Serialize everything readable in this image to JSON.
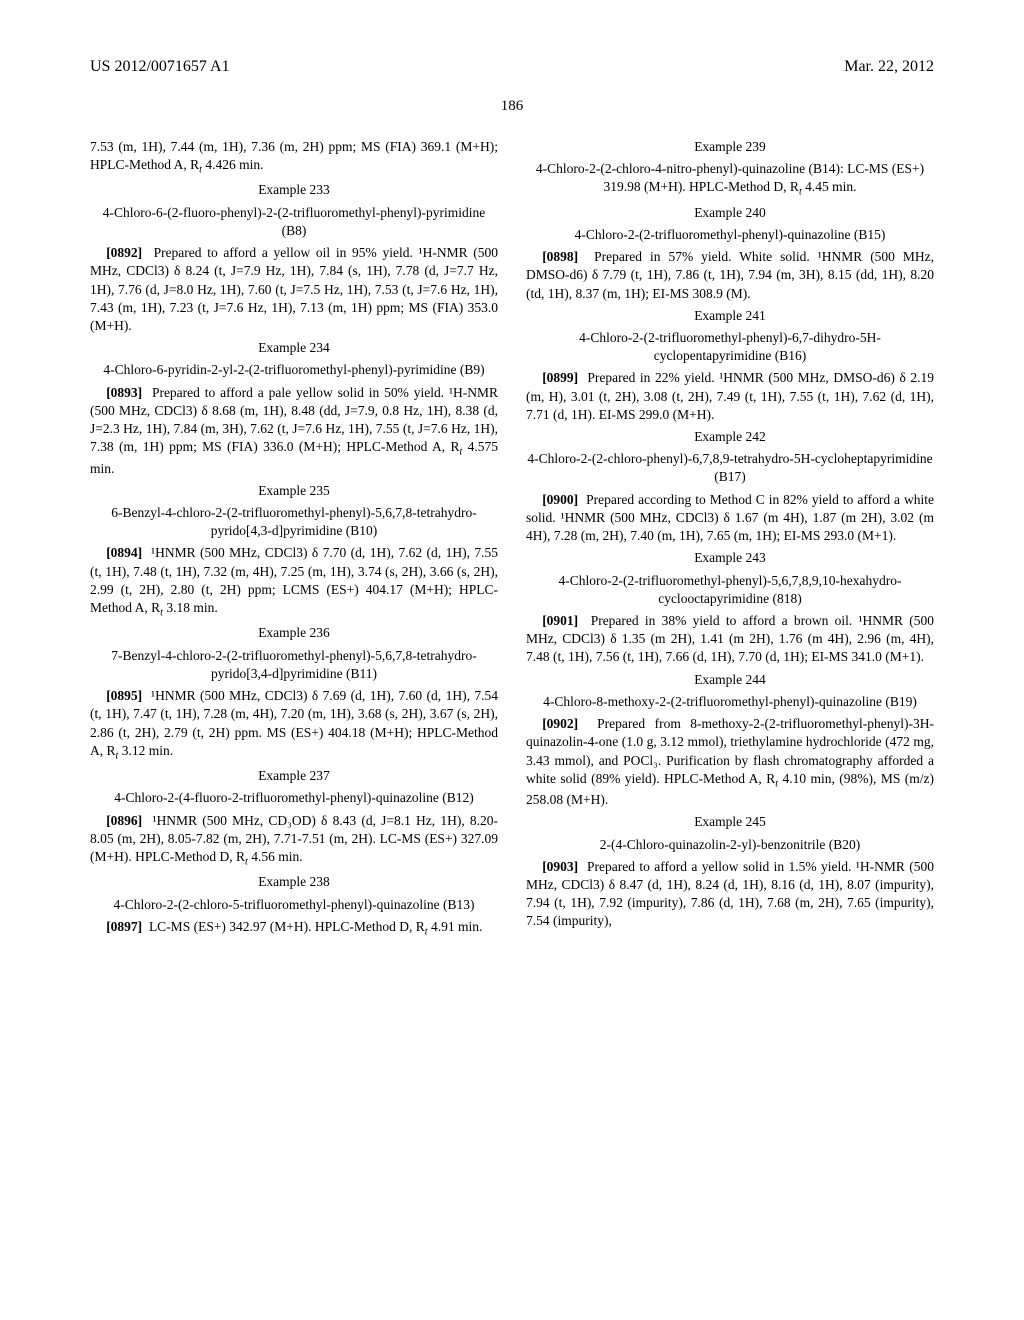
{
  "header": {
    "left": "US 2012/0071657 A1",
    "right": "Mar. 22, 2012"
  },
  "page_number": "186",
  "left_column": {
    "lead_text": "7.53 (m, 1H), 7.44 (m, 1H), 7.36 (m, 2H) ppm; MS (FIA) 369.1 (M+H); HPLC-Method A, R",
    "lead_tail": " 4.426 min.",
    "ex233": {
      "label": "Example 233",
      "title": "4-Chloro-6-(2-fluoro-phenyl)-2-(2-trifluoromethyl-phenyl)-pyrimidine (B8)",
      "para_ref": "[0892]",
      "body": "Prepared to afford a yellow oil in 95% yield. ¹H-NMR (500 MHz, CDCl3) δ 8.24 (t, J=7.9 Hz, 1H), 7.84 (s, 1H), 7.78 (d, J=7.7 Hz, 1H), 7.76 (d, J=8.0 Hz, 1H), 7.60 (t, J=7.5 Hz, 1H), 7.53 (t, J=7.6 Hz, 1H), 7.43 (m, 1H), 7.23 (t, J=7.6 Hz, 1H), 7.13 (m, 1H) ppm; MS (FIA) 353.0 (M+H)."
    },
    "ex234": {
      "label": "Example 234",
      "title": "4-Chloro-6-pyridin-2-yl-2-(2-trifluoromethyl-phenyl)-pyrimidine (B9)",
      "para_ref": "[0893]",
      "body_a": "Prepared to afford a pale yellow solid in 50% yield. ¹H-NMR (500 MHz, CDCl3) δ 8.68 (m, 1H), 8.48 (dd, J=7.9, 0.8 Hz, 1H), 8.38 (d, J=2.3 Hz, 1H), 7.84 (m, 3H), 7.62 (t, J=7.6 Hz, 1H), 7.55 (t, J=7.6 Hz, 1H), 7.38 (m, 1H) ppm; MS (FIA) 336.0 (M+H); HPLC-Method A, R",
      "body_b": " 4.575 min."
    },
    "ex235": {
      "label": "Example 235",
      "title": "6-Benzyl-4-chloro-2-(2-trifluoromethyl-phenyl)-5,6,7,8-tetrahydro-pyrido[4,3-d]pyrimidine (B10)",
      "para_ref": "[0894]",
      "body_a": "¹HNMR (500 MHz, CDCl3) δ 7.70 (d, 1H), 7.62 (d, 1H), 7.55 (t, 1H), 7.48 (t, 1H), 7.32 (m, 4H), 7.25 (m, 1H), 3.74 (s, 2H), 3.66 (s, 2H), 2.99 (t, 2H), 2.80 (t, 2H) ppm; LCMS (ES+) 404.17 (M+H); HPLC-Method A, R",
      "body_b": " 3.18 min."
    },
    "ex236": {
      "label": "Example 236",
      "title": "7-Benzyl-4-chloro-2-(2-trifluoromethyl-phenyl)-5,6,7,8-tetrahydro-pyrido[3,4-d]pyrimidine (B11)",
      "para_ref": "[0895]",
      "body_a": "¹HNMR (500 MHz, CDCl3) δ 7.69 (d, 1H), 7.60 (d, 1H), 7.54 (t, 1H), 7.47 (t, 1H), 7.28 (m, 4H), 7.20 (m, 1H), 3.68 (s, 2H), 3.67 (s, 2H), 2.86 (t, 2H), 2.79 (t, 2H) ppm. MS (ES+) 404.18 (M+H); HPLC-Method A, R",
      "body_b": " 3.12 min."
    },
    "ex237": {
      "label": "Example 237",
      "title": "4-Chloro-2-(4-fluoro-2-trifluoromethyl-phenyl)-quinazoline (B12)",
      "para_ref": "[0896]",
      "body_a": "¹HNMR (500 MHz, CD₃OD) δ 8.43 (d, J=8.1 Hz, 1H), 8.20-8.05 (m, 2H), 8.05-7.82 (m, 2H), 7.71-7.51 (m, 2H). LC-MS (ES+) 327.09 (M+H). HPLC-Method D, R",
      "body_b": " 4.56 min."
    },
    "ex238": {
      "label": "Example 238",
      "title": "4-Chloro-2-(2-chloro-5-trifluoromethyl-phenyl)-quinazoline (B13)",
      "para_ref": "[0897]",
      "body_a": "LC-MS (ES+) 342.97 (M+H). HPLC-Method D, R",
      "body_b": " 4.91 min."
    }
  },
  "right_column": {
    "ex239": {
      "label": "Example 239",
      "title_a": "4-Chloro-2-(2-chloro-4-nitro-phenyl)-quinazoline (B14): LC-MS (ES+) 319.98 (M+H). HPLC-Method D, R",
      "title_b": " 4.45 min."
    },
    "ex240": {
      "label": "Example 240",
      "title": "4-Chloro-2-(2-trifluoromethyl-phenyl)-quinazoline (B15)",
      "para_ref": "[0898]",
      "body": "Prepared in 57% yield. White solid. ¹HNMR (500 MHz, DMSO-d6) δ 7.79 (t, 1H), 7.86 (t, 1H), 7.94 (m, 3H), 8.15 (dd, 1H), 8.20 (td, 1H), 8.37 (m, 1H); EI-MS 308.9 (M)."
    },
    "ex241": {
      "label": "Example 241",
      "title": "4-Chloro-2-(2-trifluoromethyl-phenyl)-6,7-dihydro-5H-cyclopentapyrimidine (B16)",
      "para_ref": "[0899]",
      "body": "Prepared in 22% yield. ¹HNMR (500 MHz, DMSO-d6) δ 2.19 (m, H), 3.01 (t, 2H), 3.08 (t, 2H), 7.49 (t, 1H), 7.55 (t, 1H), 7.62 (d, 1H), 7.71 (d, 1H). EI-MS 299.0 (M+H)."
    },
    "ex242": {
      "label": "Example 242",
      "title": "4-Chloro-2-(2-chloro-phenyl)-6,7,8,9-tetrahydro-5H-cycloheptapyrimidine (B17)",
      "para_ref": "[0900]",
      "body": "Prepared according to Method C in 82% yield to afford a white solid. ¹HNMR (500 MHz, CDCl3) δ 1.67 (m 4H), 1.87 (m 2H), 3.02 (m 4H), 7.28 (m, 2H), 7.40 (m, 1H), 7.65 (m, 1H); EI-MS 293.0 (M+1)."
    },
    "ex243": {
      "label": "Example 243",
      "title": "4-Chloro-2-(2-trifluoromethyl-phenyl)-5,6,7,8,9,10-hexahydro-cyclooctapyrimidine (818)",
      "para_ref": "[0901]",
      "body": "Prepared in 38% yield to afford a brown oil. ¹HNMR (500 MHz, CDCl3) δ 1.35 (m 2H), 1.41 (m 2H), 1.76 (m 4H), 2.96 (m, 4H), 7.48 (t, 1H), 7.56 (t, 1H), 7.66 (d, 1H), 7.70 (d, 1H); EI-MS 341.0 (M+1)."
    },
    "ex244": {
      "label": "Example 244",
      "title": "4-Chloro-8-methoxy-2-(2-trifluoromethyl-phenyl)-quinazoline (B19)",
      "para_ref": "[0902]",
      "body_a": "Prepared from 8-methoxy-2-(2-trifluoromethyl-phenyl)-3H-quinazolin-4-one (1.0 g, 3.12 mmol), triethylamine hydrochloride (472 mg, 3.43 mmol), and POCl₃. Purification by flash chromatography afforded a white solid (89% yield). HPLC-Method A, R",
      "body_b": " 4.10 min, (98%), MS (m/z) 258.08 (M+H)."
    },
    "ex245": {
      "label": "Example 245",
      "title": "2-(4-Chloro-quinazolin-2-yl)-benzonitrile (B20)",
      "para_ref": "[0903]",
      "body": "Prepared to afford a yellow solid in 1.5% yield. ¹H-NMR (500 MHz, CDCl3) δ 8.47 (d, 1H), 8.24 (d, 1H), 8.16 (d, 1H), 8.07 (impurity), 7.94 (t, 1H), 7.92 (impurity), 7.86 (d, 1H), 7.68 (m, 2H), 7.65 (impurity), 7.54 (impurity),"
    }
  }
}
